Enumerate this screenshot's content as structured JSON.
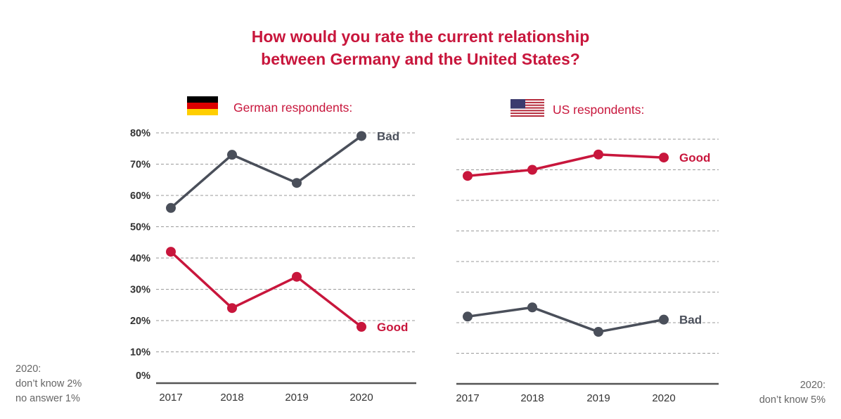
{
  "title_line1": "How would you rate the current relationship",
  "title_line2": "between Germany and the United States?",
  "colors": {
    "good": "#c8163c",
    "bad": "#4a4f5a",
    "grid": "#9a9a9a",
    "axis": "#555555"
  },
  "notes": {
    "left": [
      "2020:",
      "don’t know 2%",
      "no answer 1%"
    ],
    "right": [
      "2020:",
      "don’t know 5%"
    ]
  },
  "chart_data": [
    {
      "type": "line",
      "title": "German respondents:",
      "flag": "germany-flag",
      "x": [
        "2017",
        "2018",
        "2019",
        "2020"
      ],
      "ylim": [
        0,
        80
      ],
      "yticks": [
        "0%",
        "10%",
        "20%",
        "30%",
        "40%",
        "50%",
        "60%",
        "70%",
        "80%"
      ],
      "grid": true,
      "series": [
        {
          "name": "Bad",
          "values": [
            56,
            73,
            64,
            79
          ]
        },
        {
          "name": "Good",
          "values": [
            42,
            24,
            34,
            18
          ]
        }
      ]
    },
    {
      "type": "line",
      "title": "US respondents:",
      "flag": "usa-flag",
      "x": [
        "2017",
        "2018",
        "2019",
        "2020"
      ],
      "ylim": [
        0,
        80
      ],
      "yticks": [],
      "grid": true,
      "series": [
        {
          "name": "Good",
          "values": [
            68,
            70,
            75,
            74
          ]
        },
        {
          "name": "Bad",
          "values": [
            22,
            25,
            17,
            21
          ]
        }
      ]
    }
  ]
}
